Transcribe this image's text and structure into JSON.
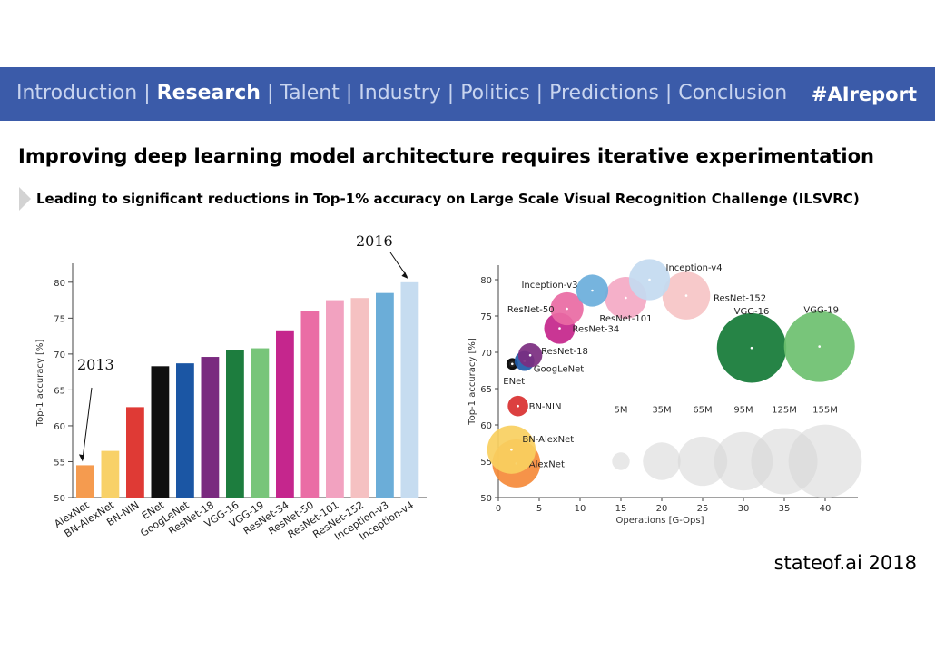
{
  "nav": {
    "items": [
      {
        "label": "Introduction",
        "active": false
      },
      {
        "label": "Research",
        "active": true
      },
      {
        "label": "Talent",
        "active": false
      },
      {
        "label": "Industry",
        "active": false
      },
      {
        "label": "Politics",
        "active": false
      },
      {
        "label": "Predictions",
        "active": false
      },
      {
        "label": "Conclusion",
        "active": false
      }
    ],
    "separator": "|",
    "hashtag": "#AIreport"
  },
  "title": "Improving deep learning model architecture requires iterative experimentation",
  "subtitle": "Leading to significant reductions in Top-1% accuracy on Large Scale Visual Recognition Challenge (ILSVRC)",
  "footer": "stateof.ai 2018",
  "chart_data": [
    {
      "type": "bar",
      "ylabel": "Top-1 accuracy [%]",
      "ylim": [
        50,
        82
      ],
      "yticks": [
        50,
        55,
        60,
        65,
        70,
        75,
        80
      ],
      "categories": [
        "AlexNet",
        "BN-AlexNet",
        "BN-NIN",
        "ENet",
        "GoogLeNet",
        "ResNet-18",
        "VGG-16",
        "VGG-19",
        "ResNet-34",
        "ResNet-50",
        "ResNet-101",
        "ResNet-152",
        "Inception-v3",
        "Inception-v4"
      ],
      "values": [
        54.5,
        56.5,
        62.6,
        68.3,
        68.7,
        69.6,
        70.6,
        70.8,
        73.3,
        76.0,
        77.5,
        77.8,
        78.5,
        80.0
      ],
      "colors": [
        "#f59b4f",
        "#f8d168",
        "#df3a35",
        "#101010",
        "#1b56a4",
        "#7a2a7f",
        "#1d7d3e",
        "#78c57a",
        "#c5268d",
        "#ea6da5",
        "#f2a2c0",
        "#f5c1c2",
        "#6badd8",
        "#c6dcf0"
      ],
      "annotations": [
        {
          "text": "2013",
          "target": "AlexNet"
        },
        {
          "text": "2016",
          "target": "Inception-v4"
        }
      ]
    },
    {
      "type": "scatter",
      "xlabel": "Operations [G-Ops]",
      "ylabel": "Top-1 accuracy [%]",
      "xlim": [
        0,
        44
      ],
      "ylim": [
        50,
        82
      ],
      "xticks": [
        0,
        5,
        10,
        15,
        20,
        25,
        30,
        35,
        40
      ],
      "yticks": [
        50,
        55,
        60,
        65,
        70,
        75,
        80
      ],
      "points": [
        {
          "name": "AlexNet",
          "ops": 2.2,
          "acc": 54.7,
          "params_m": 61,
          "color": "#f58a3a"
        },
        {
          "name": "BN-AlexNet",
          "ops": 1.6,
          "acc": 56.6,
          "params_m": 62,
          "color": "#f8cf60"
        },
        {
          "name": "BN-NIN",
          "ops": 2.4,
          "acc": 62.6,
          "params_m": 7.6,
          "color": "#d93030"
        },
        {
          "name": "ENet",
          "ops": 1.7,
          "acc": 68.4,
          "params_m": 0.4,
          "color": "#111111"
        },
        {
          "name": "GoogLeNet",
          "ops": 3.2,
          "acc": 68.8,
          "params_m": 7,
          "color": "#1f5ba8"
        },
        {
          "name": "ResNet-18",
          "ops": 3.9,
          "acc": 69.6,
          "params_m": 11.7,
          "color": "#7b2c80"
        },
        {
          "name": "VGG-16",
          "ops": 31,
          "acc": 70.6,
          "params_m": 138,
          "color": "#137a36"
        },
        {
          "name": "VGG-19",
          "ops": 39.3,
          "acc": 70.8,
          "params_m": 144,
          "color": "#6dc06f"
        },
        {
          "name": "ResNet-34",
          "ops": 7.5,
          "acc": 73.3,
          "params_m": 21.8,
          "color": "#c4258b"
        },
        {
          "name": "ResNet-50",
          "ops": 8.4,
          "acc": 76.0,
          "params_m": 25.6,
          "color": "#e96aa3"
        },
        {
          "name": "ResNet-101",
          "ops": 15.6,
          "acc": 77.5,
          "params_m": 44.5,
          "color": "#f4a9c4"
        },
        {
          "name": "ResNet-152",
          "ops": 23.0,
          "acc": 77.8,
          "params_m": 60.2,
          "color": "#f6c4c5"
        },
        {
          "name": "Inception-v3",
          "ops": 11.5,
          "acc": 78.5,
          "params_m": 23.8,
          "color": "#6aaedb"
        },
        {
          "name": "Inception-v4",
          "ops": 18.5,
          "acc": 80.0,
          "params_m": 42.7,
          "color": "#c3daf0"
        }
      ],
      "size_legend": [
        {
          "label": "5M",
          "params_m": 5,
          "ops": 15
        },
        {
          "label": "35M",
          "params_m": 35,
          "ops": 20
        },
        {
          "label": "65M",
          "params_m": 65,
          "ops": 25
        },
        {
          "label": "95M",
          "params_m": 95,
          "ops": 30
        },
        {
          "label": "125M",
          "params_m": 125,
          "ops": 35
        },
        {
          "label": "155M",
          "params_m": 155,
          "ops": 40
        }
      ],
      "size_legend_acc": 55
    }
  ]
}
